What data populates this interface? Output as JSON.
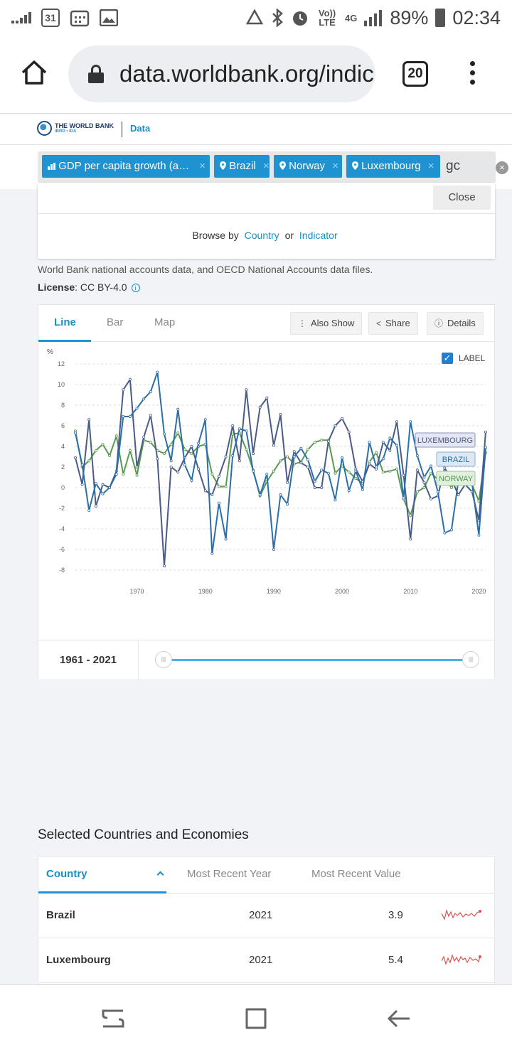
{
  "status_bar": {
    "date_badge": "31",
    "volte": "Vo)) LTE",
    "network": "4G",
    "battery": "89%",
    "time": "02:34"
  },
  "browser": {
    "url": "data.worldbank.org/indic",
    "tab_count": "20"
  },
  "header": {
    "logo_text": "THE WORLD BANK",
    "logo_sub": "IBRD • IDA",
    "section": "Data"
  },
  "search": {
    "chips": [
      {
        "label": "GDP per capita growth (a…",
        "icon": "bar-chart-icon"
      },
      {
        "label": "Brazil",
        "icon": "map-pin-icon"
      },
      {
        "label": "Norway",
        "icon": "map-pin-icon"
      },
      {
        "label": "Luxembourg",
        "icon": "map-pin-icon"
      }
    ],
    "typed": "gc",
    "close_label": "Close",
    "browse_by": "Browse by",
    "browse_country": "Country",
    "browse_or": "or",
    "browse_indicator": "Indicator"
  },
  "source": {
    "text": "World Bank national accounts data, and OECD National Accounts data files.",
    "license_label": "License",
    "license_value": ": CC BY-4.0"
  },
  "chart_tabs": {
    "line": "Line",
    "bar": "Bar",
    "map": "Map",
    "also_show": "Also Show",
    "share": "Share",
    "details": "Details"
  },
  "chart_data": {
    "type": "line",
    "ylabel": "%",
    "ylim": [
      -8,
      12
    ],
    "yticks": [
      12,
      10,
      8,
      6,
      4,
      2,
      0,
      -2,
      -4,
      -6,
      -8
    ],
    "xticks": [
      1970,
      1980,
      1990,
      2000,
      2010,
      2020
    ],
    "xlim": [
      1961,
      2021
    ],
    "grid": true,
    "label_toggle": "LABEL",
    "series": [
      {
        "name": "LUXEMBOURG",
        "color": "#4a5b88",
        "values": [
          2.9,
          0.3,
          6.6,
          -1.8,
          0.3,
          0.0,
          1.6,
          9.5,
          10.5,
          2.0,
          4.9,
          7.0,
          2.8,
          -7.6,
          2.0,
          1.5,
          2.9,
          4.0,
          1.8,
          -0.3,
          -0.7,
          1.1,
          3.0,
          6.0,
          2.6,
          9.5,
          3.3,
          7.8,
          8.7,
          4.1,
          7.1,
          0.5,
          3.5,
          2.4,
          2.0,
          0.0,
          0.0,
          4.5,
          6.0,
          6.7,
          5.4,
          1.8,
          0.6,
          2.3,
          1.8,
          4.4,
          3.6,
          6.4,
          1.2,
          -5.0,
          1.7,
          0.5,
          -1.1,
          -0.8,
          1.9,
          0.8,
          -0.7,
          0.3,
          -0.4,
          -3.2,
          5.4
        ]
      },
      {
        "name": "BRAZIL",
        "color": "#2b6ea8",
        "values": [
          5.3,
          2.2,
          -2.2,
          0.4,
          -0.6,
          0.0,
          1.3,
          6.9,
          6.9,
          7.7,
          8.6,
          9.3,
          11.2,
          5.2,
          2.6,
          7.6,
          2.2,
          0.7,
          4.3,
          6.6,
          -6.4,
          -1.5,
          -5.0,
          3.1,
          5.7,
          5.5,
          1.6,
          -0.7,
          1.3,
          -6.0,
          -0.7,
          -1.6,
          3.0,
          3.8,
          2.7,
          0.6,
          1.7,
          1.4,
          -1.2,
          2.9,
          -0.3,
          1.6,
          -0.2,
          4.4,
          2.0,
          2.8,
          4.8,
          4.1,
          -1.0,
          6.4,
          3.1,
          1.0,
          2.1,
          -0.4,
          -4.4,
          -4.1,
          0.6,
          0.9,
          0.4,
          -4.6,
          3.9
        ]
      },
      {
        "name": "NORWAY",
        "color": "#5a9a52",
        "values": [
          5.5,
          2.0,
          2.6,
          3.6,
          4.2,
          3.1,
          5.0,
          1.3,
          3.6,
          1.2,
          4.6,
          4.4,
          3.6,
          3.3,
          4.2,
          5.3,
          3.7,
          3.3,
          4.0,
          4.2,
          1.3,
          0.1,
          0.1,
          5.2,
          5.3,
          3.7,
          1.7,
          -0.8,
          0.6,
          1.6,
          2.6,
          3.0,
          2.3,
          2.5,
          3.7,
          4.4,
          4.6,
          4.6,
          1.4,
          2.1,
          1.5,
          0.9,
          0.4,
          2.5,
          3.4,
          1.5,
          1.6,
          1.8,
          -1.1,
          -2.7,
          -0.4,
          0.0,
          1.4,
          0.8,
          0.8,
          0.0,
          1.1,
          0.3,
          0.3,
          -1.3,
          3.4
        ]
      }
    ]
  },
  "range": {
    "label": "1961 - 2021",
    "start": 1961,
    "end": 2021
  },
  "countries_table": {
    "title": "Selected Countries and Economies",
    "headers": {
      "country": "Country",
      "year": "Most Recent Year",
      "value": "Most Recent Value"
    },
    "rows": [
      {
        "country": "Brazil",
        "year": "2021",
        "value": "3.9"
      },
      {
        "country": "Luxembourg",
        "year": "2021",
        "value": "5.4"
      }
    ],
    "spark_color": "#d9534f"
  }
}
